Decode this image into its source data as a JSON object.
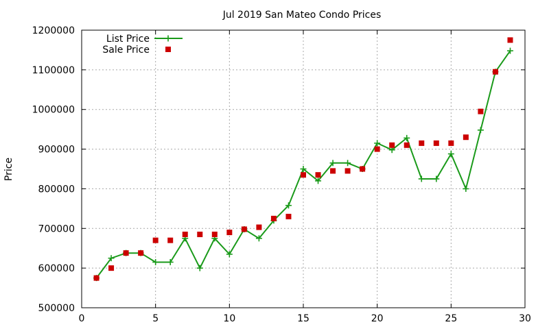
{
  "chart_data": {
    "type": "line",
    "title": "Jul 2019 San Mateo Condo Prices",
    "xlabel": "",
    "ylabel": "Price",
    "xlim": [
      0,
      30
    ],
    "ylim": [
      500000,
      1200000
    ],
    "xticks": [
      0,
      5,
      10,
      15,
      20,
      25,
      30
    ],
    "yticks": [
      500000,
      600000,
      700000,
      800000,
      900000,
      1000000,
      1100000,
      1200000
    ],
    "grid": true,
    "legend_position": "top-left",
    "series": [
      {
        "name": "List Price",
        "style": "line-with-plus-markers",
        "color": "#1a9a1a",
        "x": [
          1,
          2,
          3,
          4,
          5,
          6,
          7,
          8,
          9,
          10,
          11,
          12,
          13,
          14,
          15,
          16,
          17,
          18,
          19,
          20,
          21,
          22,
          23,
          24,
          25,
          26,
          27,
          28,
          29
        ],
        "y": [
          575000,
          625000,
          638000,
          638000,
          615000,
          615000,
          675000,
          600000,
          675000,
          635000,
          698000,
          675000,
          720000,
          758000,
          850000,
          820000,
          865000,
          865000,
          850000,
          915000,
          898000,
          928000,
          825000,
          825000,
          888000,
          800000,
          948000,
          1095000,
          1148000
        ]
      },
      {
        "name": "Sale Price",
        "style": "square-markers",
        "color": "#cc0000",
        "x": [
          1,
          2,
          3,
          4,
          5,
          6,
          7,
          8,
          9,
          10,
          11,
          12,
          13,
          14,
          15,
          16,
          17,
          18,
          19,
          20,
          21,
          22,
          23,
          24,
          25,
          26,
          27,
          28,
          29
        ],
        "y": [
          575000,
          600000,
          638000,
          638000,
          670000,
          670000,
          685000,
          685000,
          685000,
          690000,
          698000,
          703000,
          725000,
          730000,
          835000,
          835000,
          845000,
          845000,
          850000,
          900000,
          910000,
          910000,
          915000,
          915000,
          915000,
          930000,
          995000,
          1095000,
          1175000
        ]
      }
    ]
  }
}
